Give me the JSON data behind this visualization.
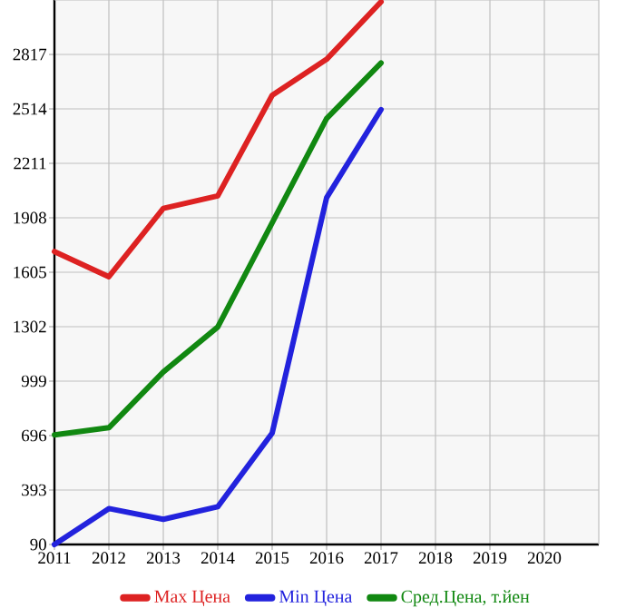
{
  "chart_data": {
    "type": "line",
    "x": [
      2011,
      2012,
      2013,
      2014,
      2015,
      2016,
      2017
    ],
    "series": [
      {
        "name": "Max Цена",
        "color": "#dd2222",
        "values": [
          1720,
          1580,
          1960,
          2030,
          2590,
          2790,
          3110
        ]
      },
      {
        "name": "Min Цена",
        "color": "#2222dd",
        "values": [
          90,
          290,
          230,
          300,
          710,
          2020,
          2510
        ]
      },
      {
        "name": "Сред.Цена, т.йен",
        "color": "#118811",
        "values": [
          700,
          740,
          1050,
          1300,
          1880,
          2460,
          2770
        ]
      }
    ],
    "xlim": [
      2011,
      2021
    ],
    "ylim": [
      90,
      3120
    ],
    "xticks": [
      2011,
      2012,
      2013,
      2014,
      2015,
      2016,
      2017,
      2018,
      2019,
      2020
    ],
    "yticks": [
      90,
      393,
      696,
      999,
      1302,
      1605,
      1908,
      2211,
      2514,
      2817
    ],
    "grid": true,
    "legend": "bottom",
    "marker": "none",
    "line_style": "solid"
  }
}
